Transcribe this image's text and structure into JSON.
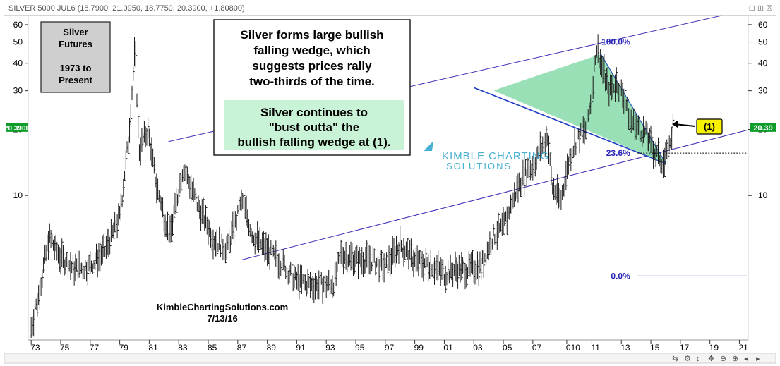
{
  "header": {
    "ticker": "SILVER 5000 JUL6 (18.7900, 21.0950, 18.7750, 20.3900, +1.80800)",
    "window_controls": [
      "⊟",
      "⊞",
      "☒"
    ]
  },
  "bottom_toolbar": [
    "⇆",
    "⚙",
    "↕",
    "✥",
    "⊖",
    "⊕",
    "◂",
    "▸"
  ],
  "boxes": {
    "title_lines": [
      "Silver",
      "Futures",
      "",
      "1973 to",
      "Present"
    ],
    "note_main_lines": [
      "Silver forms large bullish",
      "falling wedge, which",
      "suggests prices rally",
      "two-thirds of the time."
    ],
    "note_green_lines": [
      "Silver continues to",
      "\"bust outta\" the",
      "bullish falling wedge at (1)."
    ],
    "callout": "(1)",
    "watermark_top": "KIMBLE CHARTING",
    "watermark_bottom": "SOLUTIONS",
    "credit": "KimbleChartingSolutions.com",
    "date": "7/13/16"
  },
  "fib": [
    {
      "label": "100.0%",
      "value": 50
    },
    {
      "label": "23.6%",
      "value": 15.6
    },
    {
      "label": "0.0%",
      "value": 4.3
    }
  ],
  "colors": {
    "candle": "#1a1a1a",
    "trend": "#3b2fb5",
    "wedge_fill": "#7fd8a4",
    "wedge_line": "#1f3fc2",
    "price_tag": "#0e9d2a",
    "price_tag_text": "#ffffff",
    "callout_fill": "#f6f200",
    "note_green": "#c9f3d6",
    "title_box": "#cfcfcf",
    "fib_label": "#2a26b8",
    "watermark": "#29a3c9"
  },
  "chart_data": {
    "type": "candlestick",
    "scale": "log",
    "ylim": [
      2.2,
      66
    ],
    "xlim": [
      1972.8,
      2021.6
    ],
    "y_ticks": [
      10,
      20,
      30,
      40,
      50,
      60
    ],
    "y_tick_labels": [
      "10",
      "20",
      "30",
      "40",
      "50",
      "60"
    ],
    "x_tick_labels": [
      "73",
      "75",
      "77",
      "79",
      "81",
      "83",
      "85",
      "87",
      "89",
      "91",
      "93",
      "95",
      "97",
      "99",
      "01",
      "03",
      "05",
      "07",
      "010",
      "11",
      "13",
      "15",
      "17",
      "19",
      "21"
    ],
    "x_tick_years": [
      1973,
      1975,
      1977,
      1979,
      1981,
      1983,
      1985,
      1987,
      1989,
      1991,
      1993,
      1995,
      1997,
      1999,
      2001,
      2003,
      2005,
      2007,
      2009.3,
      2011,
      2013,
      2015,
      2017,
      2019,
      2021
    ],
    "last_price": 20.39,
    "last_price_label_left": "20.3900",
    "last_price_label_right": "20.39",
    "series": [
      {
        "x": [
          1973.0,
          1973.5,
          1974.2,
          1975.0,
          1976.0,
          1977.0,
          1978.0,
          1979.0,
          1979.6,
          1980.05,
          1980.3,
          1980.9,
          1981.5,
          1982.4,
          1983.3,
          1984.3,
          1985.4,
          1986.3,
          1987.3,
          1988.0,
          1989.0,
          1990.0,
          1991.0,
          1992.0,
          1993.5,
          1994.0,
          1995.0,
          1996.0,
          1997.0,
          1998.0,
          1999.0,
          2000.0,
          2001.0,
          2001.8,
          2002.5,
          2003.5,
          2004.3,
          2005.0,
          2006.0,
          2006.6,
          2007.0,
          2008.0,
          2008.3,
          2008.9,
          2009.5,
          2010.0,
          2010.6,
          2011.0,
          2011.3,
          2011.7,
          2012.2,
          2012.7,
          2013.2,
          2013.6,
          2014.2,
          2014.7,
          2015.2,
          2015.9,
          2016.2,
          2016.5
        ],
        "y": [
          2.5,
          3.5,
          6.5,
          5.2,
          4.6,
          4.8,
          5.6,
          8.0,
          18,
          48,
          16,
          20,
          11,
          6.5,
          13.5,
          9.0,
          6.3,
          5.7,
          9.5,
          6.6,
          5.6,
          4.9,
          4.1,
          3.9,
          4.0,
          5.4,
          5.1,
          5.1,
          4.7,
          6.0,
          5.0,
          4.9,
          4.4,
          4.6,
          4.6,
          4.8,
          6.5,
          7.2,
          11,
          13,
          13.5,
          19,
          11,
          9.5,
          15,
          18,
          20,
          29,
          48,
          38,
          30,
          33,
          28,
          22,
          20,
          19,
          16,
          14.0,
          16,
          20.39
        ]
      }
    ],
    "trendlines": [
      {
        "name": "upper channel",
        "from": [
          1982.3,
          17.6
        ],
        "to": [
          2019.8,
          66
        ]
      },
      {
        "name": "lower channel",
        "from": [
          1987.3,
          5.1
        ],
        "to": [
          2021.6,
          19.9
        ]
      },
      {
        "name": "wedge top",
        "from": [
          2003.0,
          31
        ],
        "to": [
          2016.0,
          14.0
        ]
      },
      {
        "name": "wedge bottom",
        "from": [
          2011.6,
          44
        ],
        "to": [
          2016.0,
          14.0
        ]
      }
    ]
  }
}
